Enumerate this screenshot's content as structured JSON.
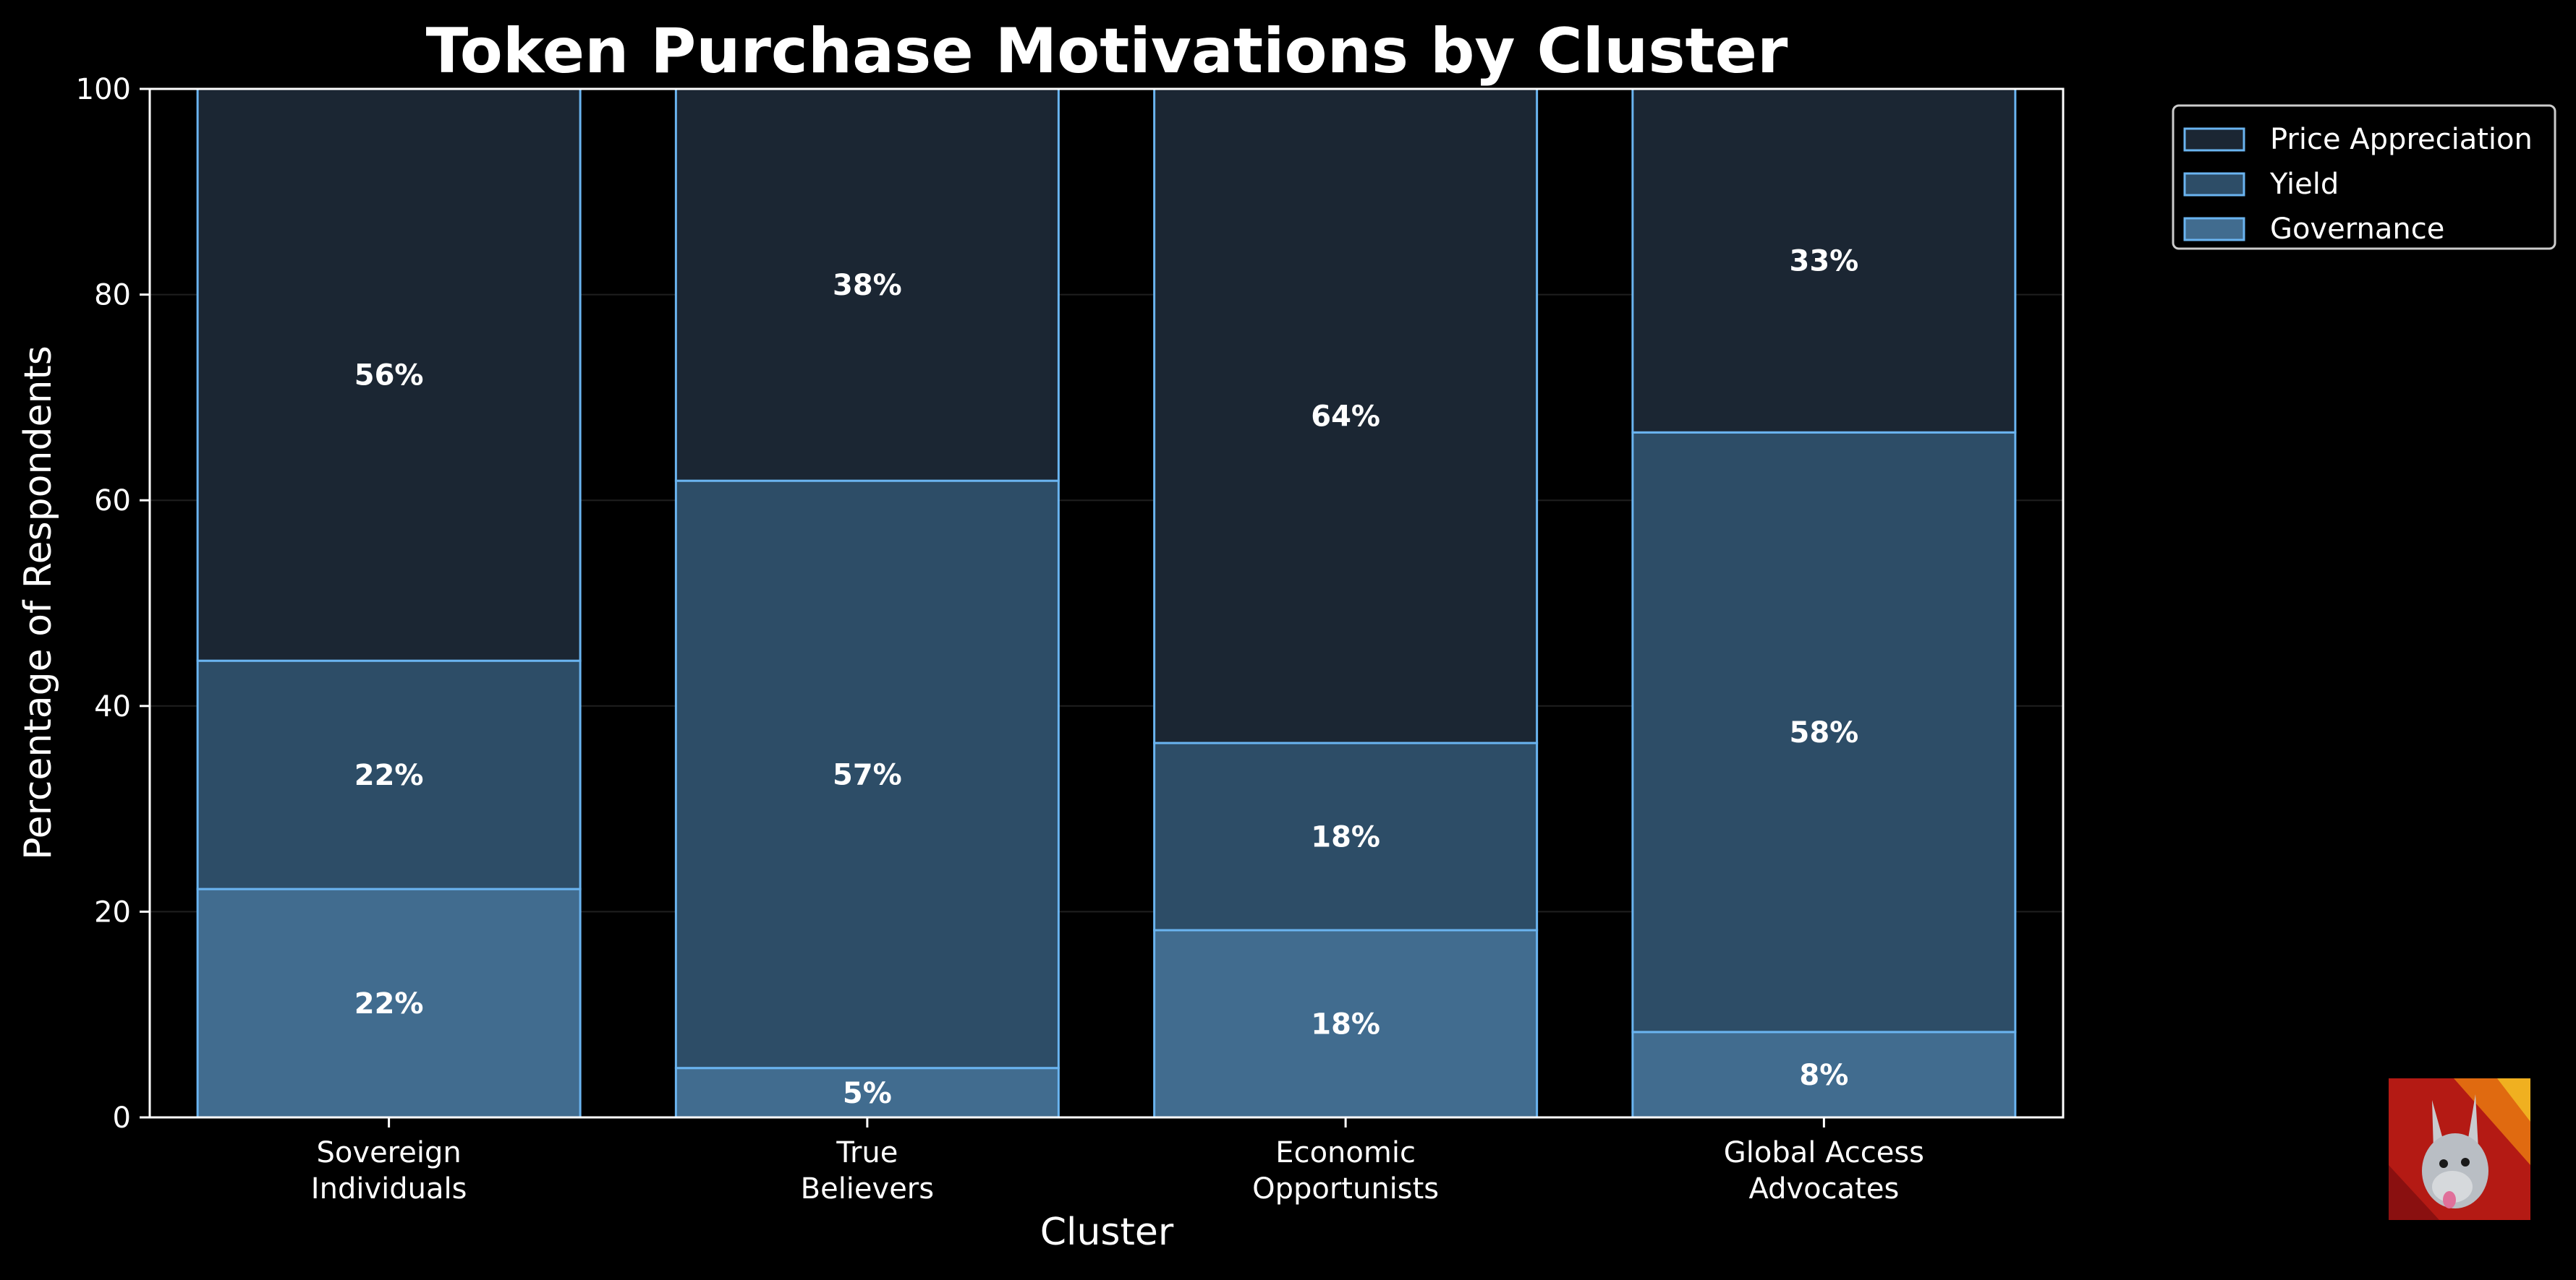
{
  "chart_data": {
    "type": "bar",
    "stacked": true,
    "title": "Token Purchase Motivations by Cluster",
    "xlabel": "Cluster",
    "ylabel": "Percentage of Respondents",
    "ylim": [
      0,
      100
    ],
    "yticks": [
      "0",
      "20",
      "40",
      "60",
      "80",
      "100"
    ],
    "grid": true,
    "legend_position": "outside top-right",
    "categories": [
      [
        "Sovereign",
        "Individuals"
      ],
      [
        "True",
        "Believers"
      ],
      [
        "Economic",
        "Opportunists"
      ],
      [
        "Global Access",
        "Advocates"
      ]
    ],
    "series": [
      {
        "name": "Governance",
        "values": [
          22.2,
          4.8,
          18.2,
          8.3
        ],
        "labels": [
          "22%",
          "5%",
          "18%",
          "8%"
        ],
        "color": "#416c8f"
      },
      {
        "name": "Yield",
        "values": [
          22.2,
          57.1,
          18.2,
          58.3
        ],
        "labels": [
          "22%",
          "57%",
          "18%",
          "58%"
        ],
        "color": "#2d4d67"
      },
      {
        "name": "Price Appreciation",
        "values": [
          55.6,
          38.1,
          63.6,
          33.4
        ],
        "labels": [
          "56%",
          "38%",
          "64%",
          "33%"
        ],
        "color": "#1b2633"
      }
    ],
    "legend_order": [
      "Price Appreciation",
      "Yield",
      "Governance"
    ],
    "edge_color": "#6ab4f0"
  },
  "logo": {
    "name": "llama-mascot-logo"
  }
}
